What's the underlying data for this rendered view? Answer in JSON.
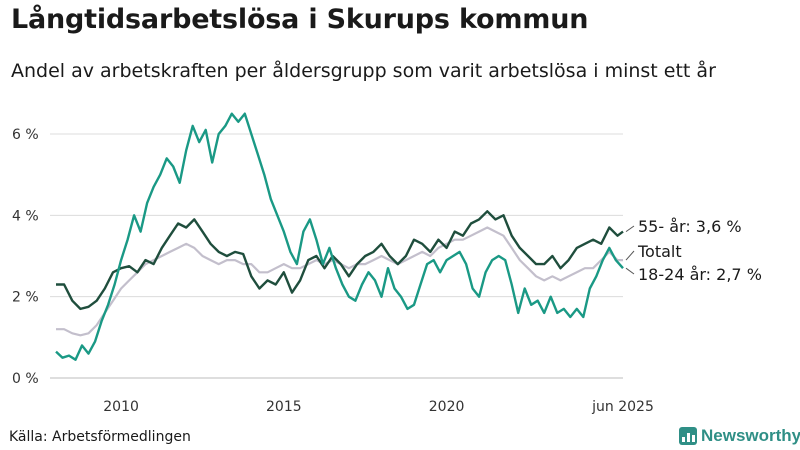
{
  "header": {
    "title": "Långtidsarbetslösa i Skurups kommun",
    "subtitle": "Andel av arbetskraften per åldersgrupp som varit arbetslösa i minst ett år"
  },
  "footer": {
    "source": "Källa: Arbetsförmedlingen",
    "brand": "Newsworthy"
  },
  "colors": {
    "age_55": "#1f4e3d",
    "age_18_24": "#1a9985",
    "total": "#c3bfcc",
    "grid": "#dcdcdc",
    "brand": "#2f8f86"
  },
  "chart_data": {
    "type": "line",
    "title": "Långtidsarbetslösa i Skurups kommun",
    "subtitle": "Andel av arbetskraften per åldersgrupp som varit arbetslösa i minst ett år",
    "x_range": [
      2008.0,
      2025.42
    ],
    "ylim": [
      0,
      6.5
    ],
    "y_ticks": [
      0,
      2,
      4,
      6
    ],
    "y_tick_labels": [
      "0 %",
      "2 %",
      "4 %",
      "6 %"
    ],
    "x_ticks": [
      2010,
      2015,
      2020,
      2025.42
    ],
    "x_tick_labels": [
      "2010",
      "2015",
      "2020",
      "jun 2025"
    ],
    "grid": "horizontal",
    "series": [
      {
        "name": "55- år",
        "end_label": "55- år: 3,6 %",
        "color": "#1f4e3d",
        "points": [
          [
            2008.0,
            2.3
          ],
          [
            2008.25,
            2.3
          ],
          [
            2008.5,
            1.9
          ],
          [
            2008.75,
            1.7
          ],
          [
            2009.0,
            1.75
          ],
          [
            2009.25,
            1.9
          ],
          [
            2009.5,
            2.2
          ],
          [
            2009.75,
            2.6
          ],
          [
            2010.0,
            2.7
          ],
          [
            2010.25,
            2.75
          ],
          [
            2010.5,
            2.6
          ],
          [
            2010.75,
            2.9
          ],
          [
            2011.0,
            2.8
          ],
          [
            2011.25,
            3.2
          ],
          [
            2011.5,
            3.5
          ],
          [
            2011.75,
            3.8
          ],
          [
            2012.0,
            3.7
          ],
          [
            2012.25,
            3.9
          ],
          [
            2012.5,
            3.6
          ],
          [
            2012.75,
            3.3
          ],
          [
            2013.0,
            3.1
          ],
          [
            2013.25,
            3.0
          ],
          [
            2013.5,
            3.1
          ],
          [
            2013.75,
            3.05
          ],
          [
            2014.0,
            2.5
          ],
          [
            2014.25,
            2.2
          ],
          [
            2014.5,
            2.4
          ],
          [
            2014.75,
            2.3
          ],
          [
            2015.0,
            2.6
          ],
          [
            2015.25,
            2.1
          ],
          [
            2015.5,
            2.4
          ],
          [
            2015.75,
            2.9
          ],
          [
            2016.0,
            3.0
          ],
          [
            2016.25,
            2.7
          ],
          [
            2016.5,
            3.0
          ],
          [
            2016.75,
            2.8
          ],
          [
            2017.0,
            2.5
          ],
          [
            2017.25,
            2.8
          ],
          [
            2017.5,
            3.0
          ],
          [
            2017.75,
            3.1
          ],
          [
            2018.0,
            3.3
          ],
          [
            2018.25,
            3.0
          ],
          [
            2018.5,
            2.8
          ],
          [
            2018.75,
            3.0
          ],
          [
            2019.0,
            3.4
          ],
          [
            2019.25,
            3.3
          ],
          [
            2019.5,
            3.1
          ],
          [
            2019.75,
            3.4
          ],
          [
            2020.0,
            3.2
          ],
          [
            2020.25,
            3.6
          ],
          [
            2020.5,
            3.5
          ],
          [
            2020.75,
            3.8
          ],
          [
            2021.0,
            3.9
          ],
          [
            2021.25,
            4.1
          ],
          [
            2021.5,
            3.9
          ],
          [
            2021.75,
            4.0
          ],
          [
            2022.0,
            3.5
          ],
          [
            2022.25,
            3.2
          ],
          [
            2022.5,
            3.0
          ],
          [
            2022.75,
            2.8
          ],
          [
            2023.0,
            2.8
          ],
          [
            2023.25,
            3.0
          ],
          [
            2023.5,
            2.7
          ],
          [
            2023.75,
            2.9
          ],
          [
            2024.0,
            3.2
          ],
          [
            2024.25,
            3.3
          ],
          [
            2024.5,
            3.4
          ],
          [
            2024.75,
            3.3
          ],
          [
            2025.0,
            3.7
          ],
          [
            2025.25,
            3.5
          ],
          [
            2025.42,
            3.6
          ]
        ]
      },
      {
        "name": "Totalt",
        "end_label": "Totalt",
        "color": "#c3bfcc",
        "points": [
          [
            2008.0,
            1.2
          ],
          [
            2008.25,
            1.2
          ],
          [
            2008.5,
            1.1
          ],
          [
            2008.75,
            1.05
          ],
          [
            2009.0,
            1.1
          ],
          [
            2009.25,
            1.3
          ],
          [
            2009.5,
            1.6
          ],
          [
            2009.75,
            1.9
          ],
          [
            2010.0,
            2.2
          ],
          [
            2010.25,
            2.4
          ],
          [
            2010.5,
            2.6
          ],
          [
            2010.75,
            2.8
          ],
          [
            2011.0,
            2.9
          ],
          [
            2011.25,
            3.0
          ],
          [
            2011.5,
            3.1
          ],
          [
            2011.75,
            3.2
          ],
          [
            2012.0,
            3.3
          ],
          [
            2012.25,
            3.2
          ],
          [
            2012.5,
            3.0
          ],
          [
            2012.75,
            2.9
          ],
          [
            2013.0,
            2.8
          ],
          [
            2013.25,
            2.9
          ],
          [
            2013.5,
            2.9
          ],
          [
            2013.75,
            2.8
          ],
          [
            2014.0,
            2.8
          ],
          [
            2014.25,
            2.6
          ],
          [
            2014.5,
            2.6
          ],
          [
            2014.75,
            2.7
          ],
          [
            2015.0,
            2.8
          ],
          [
            2015.25,
            2.7
          ],
          [
            2015.5,
            2.7
          ],
          [
            2015.75,
            2.8
          ],
          [
            2016.0,
            2.9
          ],
          [
            2016.25,
            2.8
          ],
          [
            2016.5,
            2.9
          ],
          [
            2016.75,
            2.8
          ],
          [
            2017.0,
            2.7
          ],
          [
            2017.25,
            2.8
          ],
          [
            2017.5,
            2.8
          ],
          [
            2017.75,
            2.9
          ],
          [
            2018.0,
            3.0
          ],
          [
            2018.25,
            2.9
          ],
          [
            2018.5,
            2.8
          ],
          [
            2018.75,
            2.9
          ],
          [
            2019.0,
            3.0
          ],
          [
            2019.25,
            3.1
          ],
          [
            2019.5,
            3.0
          ],
          [
            2019.75,
            3.2
          ],
          [
            2020.0,
            3.3
          ],
          [
            2020.25,
            3.4
          ],
          [
            2020.5,
            3.4
          ],
          [
            2020.75,
            3.5
          ],
          [
            2021.0,
            3.6
          ],
          [
            2021.25,
            3.7
          ],
          [
            2021.5,
            3.6
          ],
          [
            2021.75,
            3.5
          ],
          [
            2022.0,
            3.2
          ],
          [
            2022.25,
            2.9
          ],
          [
            2022.5,
            2.7
          ],
          [
            2022.75,
            2.5
          ],
          [
            2023.0,
            2.4
          ],
          [
            2023.25,
            2.5
          ],
          [
            2023.5,
            2.4
          ],
          [
            2023.75,
            2.5
          ],
          [
            2024.0,
            2.6
          ],
          [
            2024.25,
            2.7
          ],
          [
            2024.5,
            2.7
          ],
          [
            2024.75,
            2.9
          ],
          [
            2025.0,
            3.1
          ],
          [
            2025.25,
            2.9
          ],
          [
            2025.42,
            2.9
          ]
        ]
      },
      {
        "name": "18-24 år",
        "end_label": "18-24 år: 2,7 %",
        "color": "#1a9985",
        "points": [
          [
            2008.0,
            0.65
          ],
          [
            2008.2,
            0.5
          ],
          [
            2008.4,
            0.55
          ],
          [
            2008.6,
            0.45
          ],
          [
            2008.8,
            0.8
          ],
          [
            2009.0,
            0.6
          ],
          [
            2009.2,
            0.9
          ],
          [
            2009.4,
            1.4
          ],
          [
            2009.6,
            1.8
          ],
          [
            2009.8,
            2.3
          ],
          [
            2010.0,
            2.9
          ],
          [
            2010.2,
            3.4
          ],
          [
            2010.4,
            4.0
          ],
          [
            2010.6,
            3.6
          ],
          [
            2010.8,
            4.3
          ],
          [
            2011.0,
            4.7
          ],
          [
            2011.2,
            5.0
          ],
          [
            2011.4,
            5.4
          ],
          [
            2011.6,
            5.2
          ],
          [
            2011.8,
            4.8
          ],
          [
            2012.0,
            5.6
          ],
          [
            2012.2,
            6.2
          ],
          [
            2012.4,
            5.8
          ],
          [
            2012.6,
            6.1
          ],
          [
            2012.8,
            5.3
          ],
          [
            2013.0,
            6.0
          ],
          [
            2013.2,
            6.2
          ],
          [
            2013.4,
            6.5
          ],
          [
            2013.6,
            6.3
          ],
          [
            2013.8,
            6.5
          ],
          [
            2014.0,
            6.0
          ],
          [
            2014.2,
            5.5
          ],
          [
            2014.4,
            5.0
          ],
          [
            2014.6,
            4.4
          ],
          [
            2014.8,
            4.0
          ],
          [
            2015.0,
            3.6
          ],
          [
            2015.2,
            3.1
          ],
          [
            2015.4,
            2.8
          ],
          [
            2015.6,
            3.6
          ],
          [
            2015.8,
            3.9
          ],
          [
            2016.0,
            3.4
          ],
          [
            2016.2,
            2.8
          ],
          [
            2016.4,
            3.2
          ],
          [
            2016.6,
            2.7
          ],
          [
            2016.8,
            2.3
          ],
          [
            2017.0,
            2.0
          ],
          [
            2017.2,
            1.9
          ],
          [
            2017.4,
            2.3
          ],
          [
            2017.6,
            2.6
          ],
          [
            2017.8,
            2.4
          ],
          [
            2018.0,
            2.0
          ],
          [
            2018.2,
            2.7
          ],
          [
            2018.4,
            2.2
          ],
          [
            2018.6,
            2.0
          ],
          [
            2018.8,
            1.7
          ],
          [
            2019.0,
            1.8
          ],
          [
            2019.2,
            2.3
          ],
          [
            2019.4,
            2.8
          ],
          [
            2019.6,
            2.9
          ],
          [
            2019.8,
            2.6
          ],
          [
            2020.0,
            2.9
          ],
          [
            2020.2,
            3.0
          ],
          [
            2020.4,
            3.1
          ],
          [
            2020.6,
            2.8
          ],
          [
            2020.8,
            2.2
          ],
          [
            2021.0,
            2.0
          ],
          [
            2021.2,
            2.6
          ],
          [
            2021.4,
            2.9
          ],
          [
            2021.6,
            3.0
          ],
          [
            2021.8,
            2.9
          ],
          [
            2022.0,
            2.3
          ],
          [
            2022.2,
            1.6
          ],
          [
            2022.4,
            2.2
          ],
          [
            2022.6,
            1.8
          ],
          [
            2022.8,
            1.9
          ],
          [
            2023.0,
            1.6
          ],
          [
            2023.2,
            2.0
          ],
          [
            2023.4,
            1.6
          ],
          [
            2023.6,
            1.7
          ],
          [
            2023.8,
            1.5
          ],
          [
            2024.0,
            1.7
          ],
          [
            2024.2,
            1.5
          ],
          [
            2024.4,
            2.2
          ],
          [
            2024.6,
            2.5
          ],
          [
            2024.8,
            2.9
          ],
          [
            2025.0,
            3.2
          ],
          [
            2025.2,
            2.9
          ],
          [
            2025.42,
            2.7
          ]
        ]
      }
    ]
  }
}
